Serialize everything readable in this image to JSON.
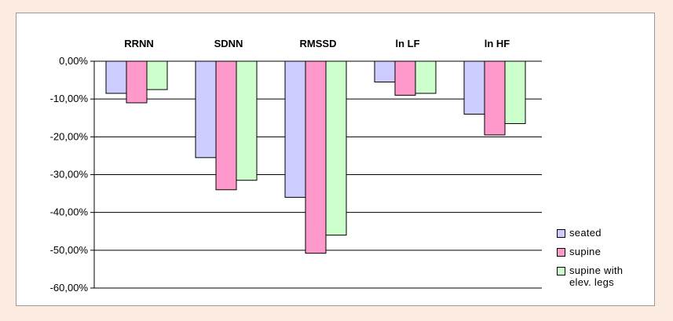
{
  "chart_data": {
    "type": "bar",
    "categories": [
      "RRNN",
      "SDNN",
      "RMSSD",
      "ln LF",
      "ln HF"
    ],
    "series": [
      {
        "name": "seated",
        "color": "#ccccff",
        "values": [
          -8.5,
          -25.5,
          -36.0,
          -5.5,
          -14.0
        ]
      },
      {
        "name": "supine",
        "color": "#ff99cc",
        "values": [
          -11.0,
          -34.0,
          -50.8,
          -9.0,
          -19.5
        ]
      },
      {
        "name": "supine with\nelev. legs",
        "color": "#ccffcc",
        "values": [
          -7.5,
          -31.5,
          -46.0,
          -8.5,
          -16.5
        ]
      }
    ],
    "ylim": [
      -60,
      0
    ],
    "yticks": [
      0,
      -10,
      -20,
      -30,
      -40,
      -50,
      -60
    ],
    "ytick_labels": [
      "0,00%",
      "-10,00%",
      "-20,00%",
      "-30,00%",
      "-40,00%",
      "-50,00%",
      "-60,00%"
    ],
    "grid": true,
    "legend_position": "right"
  }
}
